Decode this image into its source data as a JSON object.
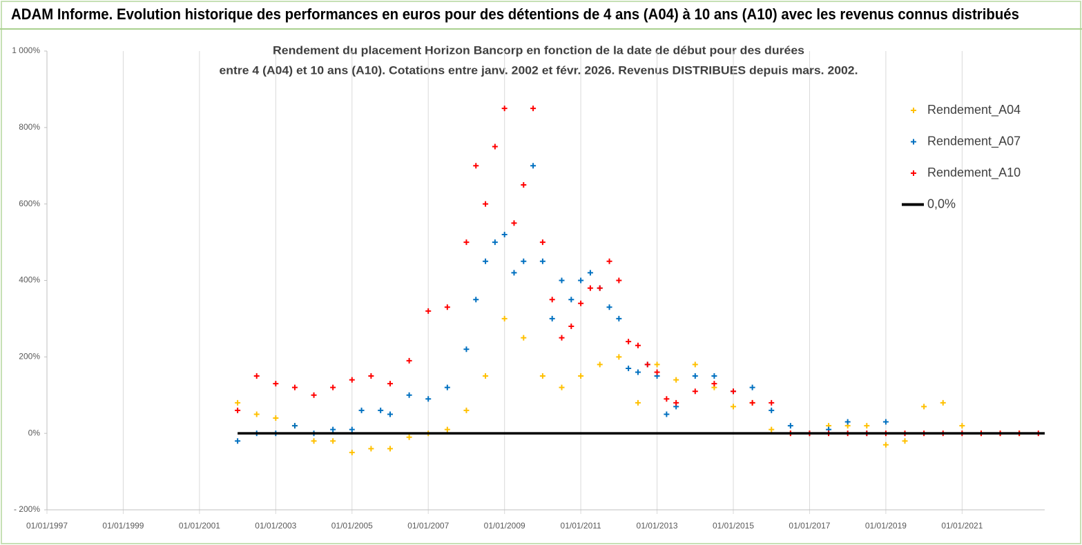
{
  "chart_data": {
    "type": "scatter",
    "title": "ADAM Informe. Evolution historique des performances en euros pour des détentions de 4 ans (A04) à 10 ans (A10) avec les revenus connus distribués",
    "subtitle": [
      "Rendement du placement Horizon Bancorp en fonction de la date de début pour des durées",
      "entre 4 (A04) et 10 ans (A10).  Cotations entre janv. 2002 et févr. 2026. Revenus DISTRIBUES depuis mars. 2002."
    ],
    "xlim": [
      "01/01/1997",
      "01/03/2023"
    ],
    "xticks": [
      "01/01/1997",
      "01/01/1999",
      "01/01/2001",
      "01/01/2003",
      "01/01/2005",
      "01/01/2007",
      "01/01/2009",
      "01/01/2011",
      "01/01/2013",
      "01/01/2015",
      "01/01/2017",
      "01/01/2019",
      "01/01/2021"
    ],
    "ylim": [
      -200,
      1000
    ],
    "yticks": [
      {
        "value": -200,
        "label": "- 200%"
      },
      {
        "value": 0,
        "label": "0%"
      },
      {
        "value": 200,
        "label": "200%"
      },
      {
        "value": 400,
        "label": "400%"
      },
      {
        "value": 600,
        "label": "600%"
      },
      {
        "value": 800,
        "label": "800%"
      },
      {
        "value": 1000,
        "label": "1 000%"
      }
    ],
    "grid": true,
    "legend": "top-right",
    "series": [
      {
        "name": "Rendement_A04",
        "color": "#ffc000",
        "mode": "markers",
        "x": [
          "01/01/2002",
          "01/07/2002",
          "01/01/2003",
          "01/07/2003",
          "01/01/2004",
          "01/07/2004",
          "01/01/2005",
          "01/07/2005",
          "01/01/2006",
          "01/07/2006",
          "01/01/2007",
          "01/07/2007",
          "01/01/2008",
          "01/07/2008",
          "01/01/2009",
          "01/07/2009",
          "01/01/2010",
          "01/07/2010",
          "01/01/2011",
          "01/07/2011",
          "01/01/2012",
          "01/07/2012",
          "01/01/2013",
          "01/07/2013",
          "01/01/2014",
          "01/07/2014",
          "01/01/2015",
          "01/07/2015",
          "01/01/2016",
          "01/07/2016",
          "01/01/2017",
          "01/07/2017",
          "01/01/2018",
          "01/07/2018",
          "01/01/2019",
          "01/07/2019",
          "01/01/2020",
          "01/07/2020",
          "01/01/2021",
          "01/07/2021",
          "01/01/2022",
          "01/07/2022"
        ],
        "values": [
          80,
          50,
          40,
          20,
          -20,
          -20,
          -50,
          -40,
          -40,
          -10,
          0,
          10,
          60,
          150,
          300,
          250,
          150,
          120,
          150,
          180,
          200,
          80,
          180,
          140,
          180,
          120,
          70,
          80,
          10,
          0,
          0,
          20,
          20,
          20,
          -30,
          -20,
          70,
          80,
          20,
          0,
          0,
          0
        ]
      },
      {
        "name": "Rendement_A07",
        "color": "#0070c0",
        "mode": "markers",
        "x": [
          "01/01/2002",
          "01/07/2002",
          "01/01/2003",
          "01/07/2003",
          "01/01/2004",
          "01/07/2004",
          "01/01/2005",
          "01/04/2005",
          "01/10/2005",
          "01/01/2006",
          "01/07/2006",
          "01/01/2007",
          "01/07/2007",
          "01/01/2008",
          "01/04/2008",
          "01/07/2008",
          "01/10/2008",
          "01/01/2009",
          "01/04/2009",
          "01/07/2009",
          "01/10/2009",
          "01/01/2010",
          "01/04/2010",
          "01/07/2010",
          "01/10/2010",
          "01/01/2011",
          "01/04/2011",
          "01/07/2011",
          "01/10/2011",
          "01/01/2012",
          "01/04/2012",
          "01/07/2012",
          "01/10/2012",
          "01/01/2013",
          "01/04/2013",
          "01/07/2013",
          "01/01/2014",
          "01/07/2014",
          "01/01/2015",
          "01/07/2015",
          "01/01/2016",
          "01/07/2016",
          "01/01/2017",
          "01/07/2017",
          "01/01/2018",
          "01/07/2018",
          "01/01/2019"
        ],
        "values": [
          -20,
          0,
          0,
          20,
          0,
          10,
          10,
          60,
          60,
          50,
          100,
          90,
          120,
          220,
          350,
          450,
          500,
          520,
          420,
          450,
          700,
          450,
          300,
          400,
          350,
          400,
          420,
          380,
          330,
          300,
          170,
          160,
          180,
          150,
          50,
          70,
          150,
          150,
          110,
          120,
          60,
          20,
          0,
          10,
          30,
          0,
          30
        ]
      },
      {
        "name": "Rendement_A10",
        "color": "#ff0000",
        "mode": "markers",
        "x": [
          "01/01/2002",
          "01/07/2002",
          "01/01/2003",
          "01/07/2003",
          "01/01/2004",
          "01/07/2004",
          "01/01/2005",
          "01/07/2005",
          "01/01/2006",
          "01/07/2006",
          "01/01/2007",
          "01/07/2007",
          "01/01/2008",
          "01/04/2008",
          "01/07/2008",
          "01/10/2008",
          "01/01/2009",
          "01/04/2009",
          "01/07/2009",
          "01/10/2009",
          "01/01/2010",
          "01/04/2010",
          "01/07/2010",
          "01/10/2010",
          "01/01/2011",
          "01/04/2011",
          "01/07/2011",
          "01/10/2011",
          "01/01/2012",
          "01/04/2012",
          "01/07/2012",
          "01/10/2012",
          "01/01/2013",
          "01/04/2013",
          "01/07/2013",
          "01/01/2014",
          "01/07/2014",
          "01/01/2015",
          "01/07/2015",
          "01/01/2016",
          "01/07/2016",
          "01/01/2017",
          "01/07/2017",
          "01/01/2018",
          "01/07/2018",
          "01/01/2019",
          "01/07/2019",
          "01/01/2020",
          "01/07/2020",
          "01/01/2021",
          "01/07/2021",
          "01/01/2022",
          "01/07/2022",
          "01/01/2023"
        ],
        "values": [
          60,
          150,
          130,
          120,
          100,
          120,
          140,
          150,
          130,
          190,
          320,
          330,
          500,
          700,
          600,
          750,
          850,
          550,
          650,
          850,
          500,
          350,
          250,
          280,
          340,
          380,
          380,
          450,
          400,
          240,
          230,
          180,
          160,
          90,
          80,
          110,
          130,
          110,
          80,
          80,
          0,
          0,
          0,
          0,
          0,
          0,
          0,
          0,
          0,
          0,
          0,
          0,
          0,
          0
        ]
      },
      {
        "name": "0,0%",
        "color": "#000000",
        "mode": "line",
        "x": [
          "01/01/2002",
          "01/03/2023"
        ],
        "values": [
          0,
          0
        ]
      }
    ]
  }
}
